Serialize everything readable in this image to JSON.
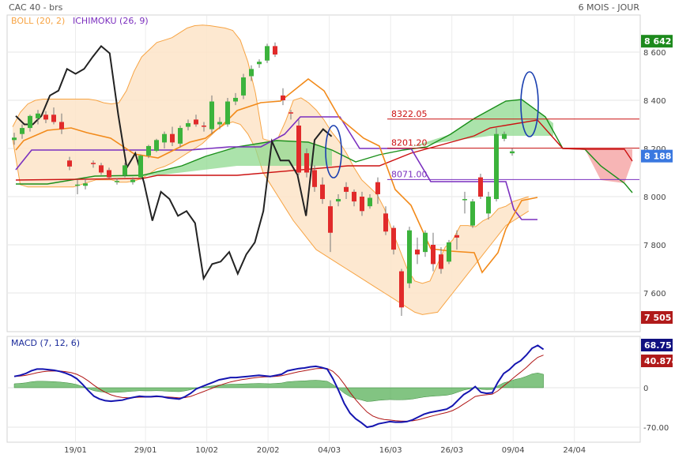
{
  "header": {
    "instrument": "CAC 40 - brs",
    "period": "6 MOIS - JOUR"
  },
  "colors": {
    "boll": "#f7a444",
    "boll_fill": "#fde4c8",
    "ichimoku": "#7b2fbe",
    "kijun": "#7a2fbf",
    "tenkan_orange": "#f28a1a",
    "red_line": "#cc1111",
    "green_line": "#1a8f1a",
    "kumo_green": "#8fd98f",
    "kumo_red": "#f6a8a8",
    "candle_up": "#3cb33c",
    "candle_down": "#e12a2a",
    "price_line": "#222222",
    "macd_line": "#1515b0",
    "signal_line": "#b01515",
    "histogram": "#58b058",
    "ellipse": "#1a3fb0",
    "tag_high_bg": "#1d8a1d",
    "tag_last_bg": "#3a78e0",
    "tag_low_bg": "#b01a1a",
    "tag_macd_bg": "#101080",
    "tag_signal_bg": "#b01a1a"
  },
  "chart_data": [
    {
      "type": "candlestick",
      "title": "CAC 40 - brs",
      "subtitle": "6 MOIS - JOUR",
      "legend": [
        {
          "id": "boll",
          "label": "BOLL (20, 2)"
        },
        {
          "id": "ichi",
          "label": "ICHIMOKU (26, 9)"
        }
      ],
      "ylim": [
        7480,
        8720
      ],
      "y_ticks": [
        {
          "value": 8600,
          "label": "8 600"
        },
        {
          "value": 8400,
          "label": "8 400"
        },
        {
          "value": 8200,
          "label": "8 200"
        },
        {
          "value": 8000,
          "label": "8 000"
        },
        {
          "value": 7800,
          "label": "7 800"
        },
        {
          "value": 7600,
          "label": "7 600"
        }
      ],
      "x_ticks": [
        {
          "index": 7,
          "label": "19/01"
        },
        {
          "index": 15,
          "label": "29/01"
        },
        {
          "index": 22,
          "label": "10/02"
        },
        {
          "index": 29,
          "label": "20/02"
        },
        {
          "index": 36,
          "label": "04/03"
        },
        {
          "index": 43,
          "label": "16/03"
        },
        {
          "index": 50,
          "label": "26/03"
        },
        {
          "index": 57,
          "label": "09/04"
        },
        {
          "index": 64,
          "label": "24/04"
        }
      ],
      "right_tags": [
        {
          "id": "high",
          "value": 8642,
          "label": "8 642"
        },
        {
          "id": "last",
          "value": 8188,
          "label": "8 188"
        },
        {
          "id": "low",
          "value": 7505,
          "label": "7 505"
        }
      ],
      "levels": [
        {
          "value": 8322.05,
          "label": "8322.05",
          "color": "red",
          "from_index": 42
        },
        {
          "value": 8201.2,
          "label": "8201.20",
          "color": "red",
          "from_index": 42
        },
        {
          "value": 8071.0,
          "label": "8071.00",
          "color": "purple",
          "from_index": 42
        }
      ],
      "candles": [
        [
          8235,
          8265,
          8215,
          8245
        ],
        [
          8260,
          8300,
          8240,
          8285
        ],
        [
          8285,
          8340,
          8270,
          8335
        ],
        [
          8325,
          8360,
          8300,
          8345
        ],
        [
          8340,
          8355,
          8305,
          8320
        ],
        [
          8340,
          8370,
          8300,
          8310
        ],
        [
          8310,
          8345,
          8260,
          8280
        ],
        [
          8150,
          8165,
          8110,
          8125
        ],
        [
          8050,
          8070,
          8010,
          8050
        ],
        [
          8045,
          8075,
          8030,
          8055
        ],
        [
          8140,
          8150,
          8120,
          8135
        ],
        [
          8130,
          8140,
          8090,
          8100
        ],
        [
          8110,
          8120,
          8075,
          8080
        ],
        [
          8060,
          8075,
          8050,
          8065
        ],
        [
          8090,
          8140,
          8080,
          8130
        ],
        [
          8060,
          8080,
          8050,
          8070
        ],
        [
          8080,
          8175,
          8070,
          8170
        ],
        [
          8170,
          8215,
          8160,
          8210
        ],
        [
          8190,
          8240,
          8185,
          8235
        ],
        [
          8225,
          8270,
          8200,
          8260
        ],
        [
          8260,
          8290,
          8210,
          8225
        ],
        [
          8220,
          8295,
          8205,
          8285
        ],
        [
          8290,
          8320,
          8275,
          8305
        ],
        [
          8320,
          8340,
          8290,
          8300
        ],
        [
          8295,
          8310,
          8270,
          8290
        ],
        [
          8280,
          8420,
          8260,
          8395
        ],
        [
          8300,
          8330,
          8280,
          8310
        ],
        [
          8300,
          8410,
          8290,
          8395
        ],
        [
          8395,
          8430,
          8380,
          8410
        ],
        [
          8420,
          8510,
          8405,
          8495
        ],
        [
          8500,
          8545,
          8480,
          8530
        ],
        [
          8550,
          8570,
          8535,
          8560
        ],
        [
          8565,
          8635,
          8555,
          8625
        ],
        [
          8625,
          8640,
          8580,
          8590
        ],
        [
          8420,
          8450,
          8380,
          8400
        ],
        [
          8350,
          8360,
          8320,
          8345
        ],
        [
          8295,
          8320,
          8090,
          8100
        ],
        [
          8180,
          8200,
          8080,
          8100
        ],
        [
          8110,
          8130,
          8020,
          8040
        ],
        [
          8050,
          8080,
          7970,
          7990
        ],
        [
          7960,
          7985,
          7770,
          7850
        ],
        [
          7980,
          8010,
          7960,
          7990
        ],
        [
          8040,
          8060,
          7990,
          8020
        ],
        [
          8020,
          8030,
          7960,
          7980
        ],
        [
          8000,
          8020,
          7920,
          7940
        ],
        [
          7960,
          8010,
          7950,
          7995
        ],
        [
          8060,
          8080,
          7970,
          8010
        ],
        [
          7930,
          7960,
          7840,
          7855
        ],
        [
          7870,
          7880,
          7760,
          7780
        ],
        [
          7690,
          7700,
          7505,
          7540
        ],
        [
          7640,
          7875,
          7620,
          7860
        ],
        [
          7780,
          7830,
          7720,
          7760
        ],
        [
          7770,
          7860,
          7750,
          7850
        ],
        [
          7800,
          7850,
          7690,
          7720
        ],
        [
          7760,
          7790,
          7680,
          7700
        ],
        [
          7730,
          7820,
          7720,
          7810
        ],
        [
          7840,
          7860,
          7780,
          7830
        ],
        [
          7990,
          8020,
          7930,
          7990
        ],
        [
          7880,
          7990,
          7870,
          7980
        ],
        [
          8080,
          8095,
          7990,
          8000
        ],
        [
          7930,
          8020,
          7905,
          8000
        ],
        [
          7990,
          8285,
          7980,
          8260
        ],
        [
          8240,
          8270,
          8230,
          8260
        ],
        [
          8180,
          8200,
          8170,
          8188
        ]
      ],
      "price_line": [
        8335,
        8300,
        8300,
        8335,
        8420,
        8440,
        8530,
        8510,
        8530,
        8580,
        8625,
        8595,
        8340,
        8120,
        8180,
        8060,
        7900,
        8020,
        7990,
        7920,
        7940,
        7890,
        7660,
        7720,
        7730,
        7770,
        7680,
        7760,
        7810,
        7940,
        8230,
        8150,
        8150,
        8090,
        7920,
        8235,
        8280,
        8250
      ],
      "boll_upper": [
        8290,
        8350,
        8385,
        8400,
        8405,
        8405,
        8405,
        8405,
        8405,
        8405,
        8405,
        8400,
        8390,
        8385,
        8390,
        8440,
        8520,
        8580,
        8610,
        8640,
        8650,
        8660,
        8680,
        8700,
        8710,
        8712,
        8710,
        8705,
        8700,
        8690,
        8650,
        8560,
        8430,
        8240,
        8230,
        8245,
        8315,
        8400,
        8410,
        8390,
        8360,
        8320,
        8270,
        8230,
        8180,
        8120,
        8070,
        8040,
        8010,
        7950,
        7860,
        7780,
        7700,
        7650,
        7640,
        7650,
        7720,
        7790,
        7820,
        7880,
        7880,
        7875,
        7900,
        7915,
        7950,
        7960,
        7980,
        7990,
        8000
      ],
      "boll_lower": [
        8240,
        8050,
        8040,
        8040,
        8040,
        8040,
        8040,
        8040,
        8040,
        8050,
        8060,
        8070,
        8070,
        8070,
        8060,
        8060,
        8065,
        8075,
        8095,
        8115,
        8125,
        8140,
        8160,
        8180,
        8200,
        8220,
        8250,
        8280,
        8300,
        8310,
        8300,
        8260,
        8200,
        8100,
        8050,
        8000,
        7950,
        7900,
        7860,
        7820,
        7780,
        7760,
        7740,
        7720,
        7700,
        7680,
        7660,
        7640,
        7620,
        7600,
        7580,
        7560,
        7540,
        7520,
        7510,
        7515,
        7520,
        7560,
        7600,
        7640,
        7680,
        7720,
        7760,
        7800,
        7840,
        7880,
        7900,
        7920,
        7940
      ]
    },
    {
      "type": "macd",
      "legend": [
        {
          "id": "macd",
          "label": "MACD (7, 12, 6)"
        }
      ],
      "ylim": [
        -85,
        85
      ],
      "y_ticks": [
        {
          "value": 0,
          "label": "0"
        },
        {
          "value": -70,
          "label": "-70.00"
        }
      ],
      "right_tags": [
        {
          "id": "macd",
          "value": 68.75,
          "label": "68.75"
        },
        {
          "id": "signal",
          "value": 40.874,
          "label": "40.874"
        }
      ],
      "macd": [
        20,
        22,
        25,
        30,
        33,
        33,
        32,
        31,
        29,
        26,
        22,
        16,
        6,
        -5,
        -15,
        -20,
        -23,
        -24,
        -23,
        -22,
        -19,
        -17,
        -15,
        -16,
        -16,
        -15,
        -16,
        -18,
        -19,
        -20,
        -16,
        -10,
        -2,
        2,
        6,
        10,
        14,
        16,
        18,
        18,
        19,
        20,
        21,
        22,
        21,
        20,
        22,
        24,
        30,
        32,
        34,
        35,
        37,
        38,
        36,
        33,
        16,
        -5,
        -28,
        -45,
        -55,
        -62,
        -70,
        -68,
        -64,
        -62,
        -60,
        -61,
        -61,
        -60,
        -57,
        -52,
        -47,
        -44,
        -42,
        -40,
        -38,
        -32,
        -22,
        -12,
        -6,
        2,
        -8,
        -10,
        -9,
        10,
        25,
        32,
        42,
        48,
        58,
        70,
        75,
        68
      ]
    }
  ]
}
